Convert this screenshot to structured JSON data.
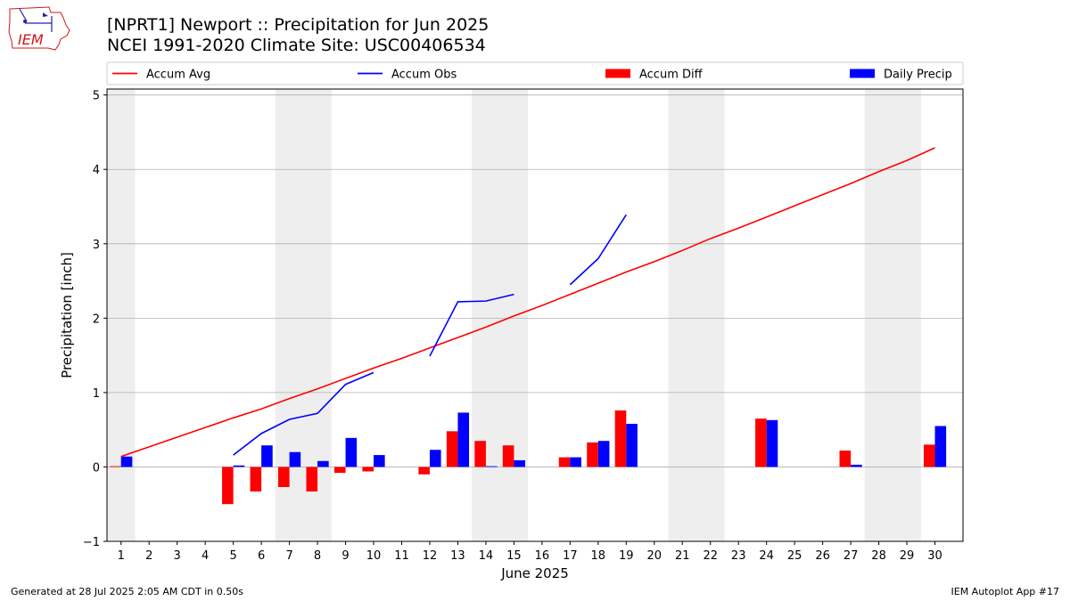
{
  "header": {
    "title_line1": "[NPRT1] Newport :: Precipitation for Jun 2025",
    "title_line2": "NCEI 1991-2020 Climate Site: USC00406534",
    "logo_text": "IEM"
  },
  "footer": {
    "generated": "Generated at 28 Jul 2025 2:05 AM CDT in 0.50s",
    "app": "IEM Autoplot App #17"
  },
  "chart_data": {
    "type": "bar",
    "xlabel": "June 2025",
    "ylabel": "Precipitation [inch]",
    "ylim": [
      -1,
      5.08
    ],
    "yticks": [
      -1,
      0,
      1,
      2,
      3,
      4,
      5
    ],
    "xlim": [
      0.5,
      31
    ],
    "days": [
      1,
      2,
      3,
      4,
      5,
      6,
      7,
      8,
      9,
      10,
      11,
      12,
      13,
      14,
      15,
      16,
      17,
      18,
      19,
      20,
      21,
      22,
      23,
      24,
      25,
      26,
      27,
      28,
      29,
      30
    ],
    "grid": "horizontal",
    "legend_position": "top",
    "weekend_shading": [
      [
        0.5,
        1.5
      ],
      [
        6.5,
        8.5
      ],
      [
        13.5,
        15.5
      ],
      [
        20.5,
        22.5
      ],
      [
        27.5,
        29.5
      ]
    ],
    "colors": {
      "accum_avg": "#ff0000",
      "accum_obs": "#0000ff",
      "accum_diff": "#ff0000",
      "daily_precip": "#0000ff",
      "weekend": "#eeeeee",
      "grid": "#b0b0b0"
    },
    "legend": [
      {
        "key": "accum_avg",
        "label": "Accum Avg",
        "kind": "line"
      },
      {
        "key": "accum_obs",
        "label": "Accum Obs",
        "kind": "line"
      },
      {
        "key": "accum_diff",
        "label": "Accum Diff",
        "kind": "bar"
      },
      {
        "key": "daily_precip",
        "label": "Daily Precip",
        "kind": "bar"
      }
    ],
    "series": [
      {
        "key": "accum_avg",
        "name": "Accum Avg",
        "values": [
          0.14,
          0.27,
          0.4,
          0.53,
          0.66,
          0.78,
          0.92,
          1.05,
          1.19,
          1.33,
          1.46,
          1.6,
          1.74,
          1.88,
          2.03,
          2.17,
          2.32,
          2.47,
          2.62,
          2.76,
          2.91,
          3.07,
          3.21,
          3.36,
          3.51,
          3.66,
          3.81,
          3.97,
          4.12,
          4.29
        ]
      },
      {
        "key": "accum_obs",
        "name": "Accum Obs",
        "values": [
          null,
          null,
          null,
          null,
          0.16,
          0.45,
          0.64,
          0.72,
          1.11,
          1.27,
          null,
          1.49,
          2.22,
          2.23,
          2.32,
          null,
          2.45,
          2.8,
          3.39,
          null,
          null,
          null,
          null,
          null,
          null,
          null,
          null,
          null,
          null,
          null
        ]
      },
      {
        "key": "accum_diff",
        "name": "Accum Diff",
        "values": [
          0.01,
          0,
          0,
          0,
          -0.5,
          -0.33,
          -0.27,
          -0.33,
          -0.08,
          -0.06,
          0,
          -0.1,
          0.48,
          0.35,
          0.29,
          0,
          0.13,
          0.33,
          0.76,
          0,
          0,
          0,
          0,
          0.65,
          0,
          0,
          0.22,
          0,
          0,
          0.3
        ]
      },
      {
        "key": "daily_precip",
        "name": "Daily Precip",
        "values": [
          0.14,
          0,
          0,
          0,
          0.02,
          0.29,
          0.2,
          0.08,
          0.39,
          0.16,
          0,
          0.23,
          0.73,
          0.01,
          0.09,
          0,
          0.13,
          0.35,
          0.58,
          0,
          0,
          0,
          0,
          0.63,
          0,
          0,
          0.03,
          0,
          0,
          0.55
        ]
      }
    ]
  }
}
